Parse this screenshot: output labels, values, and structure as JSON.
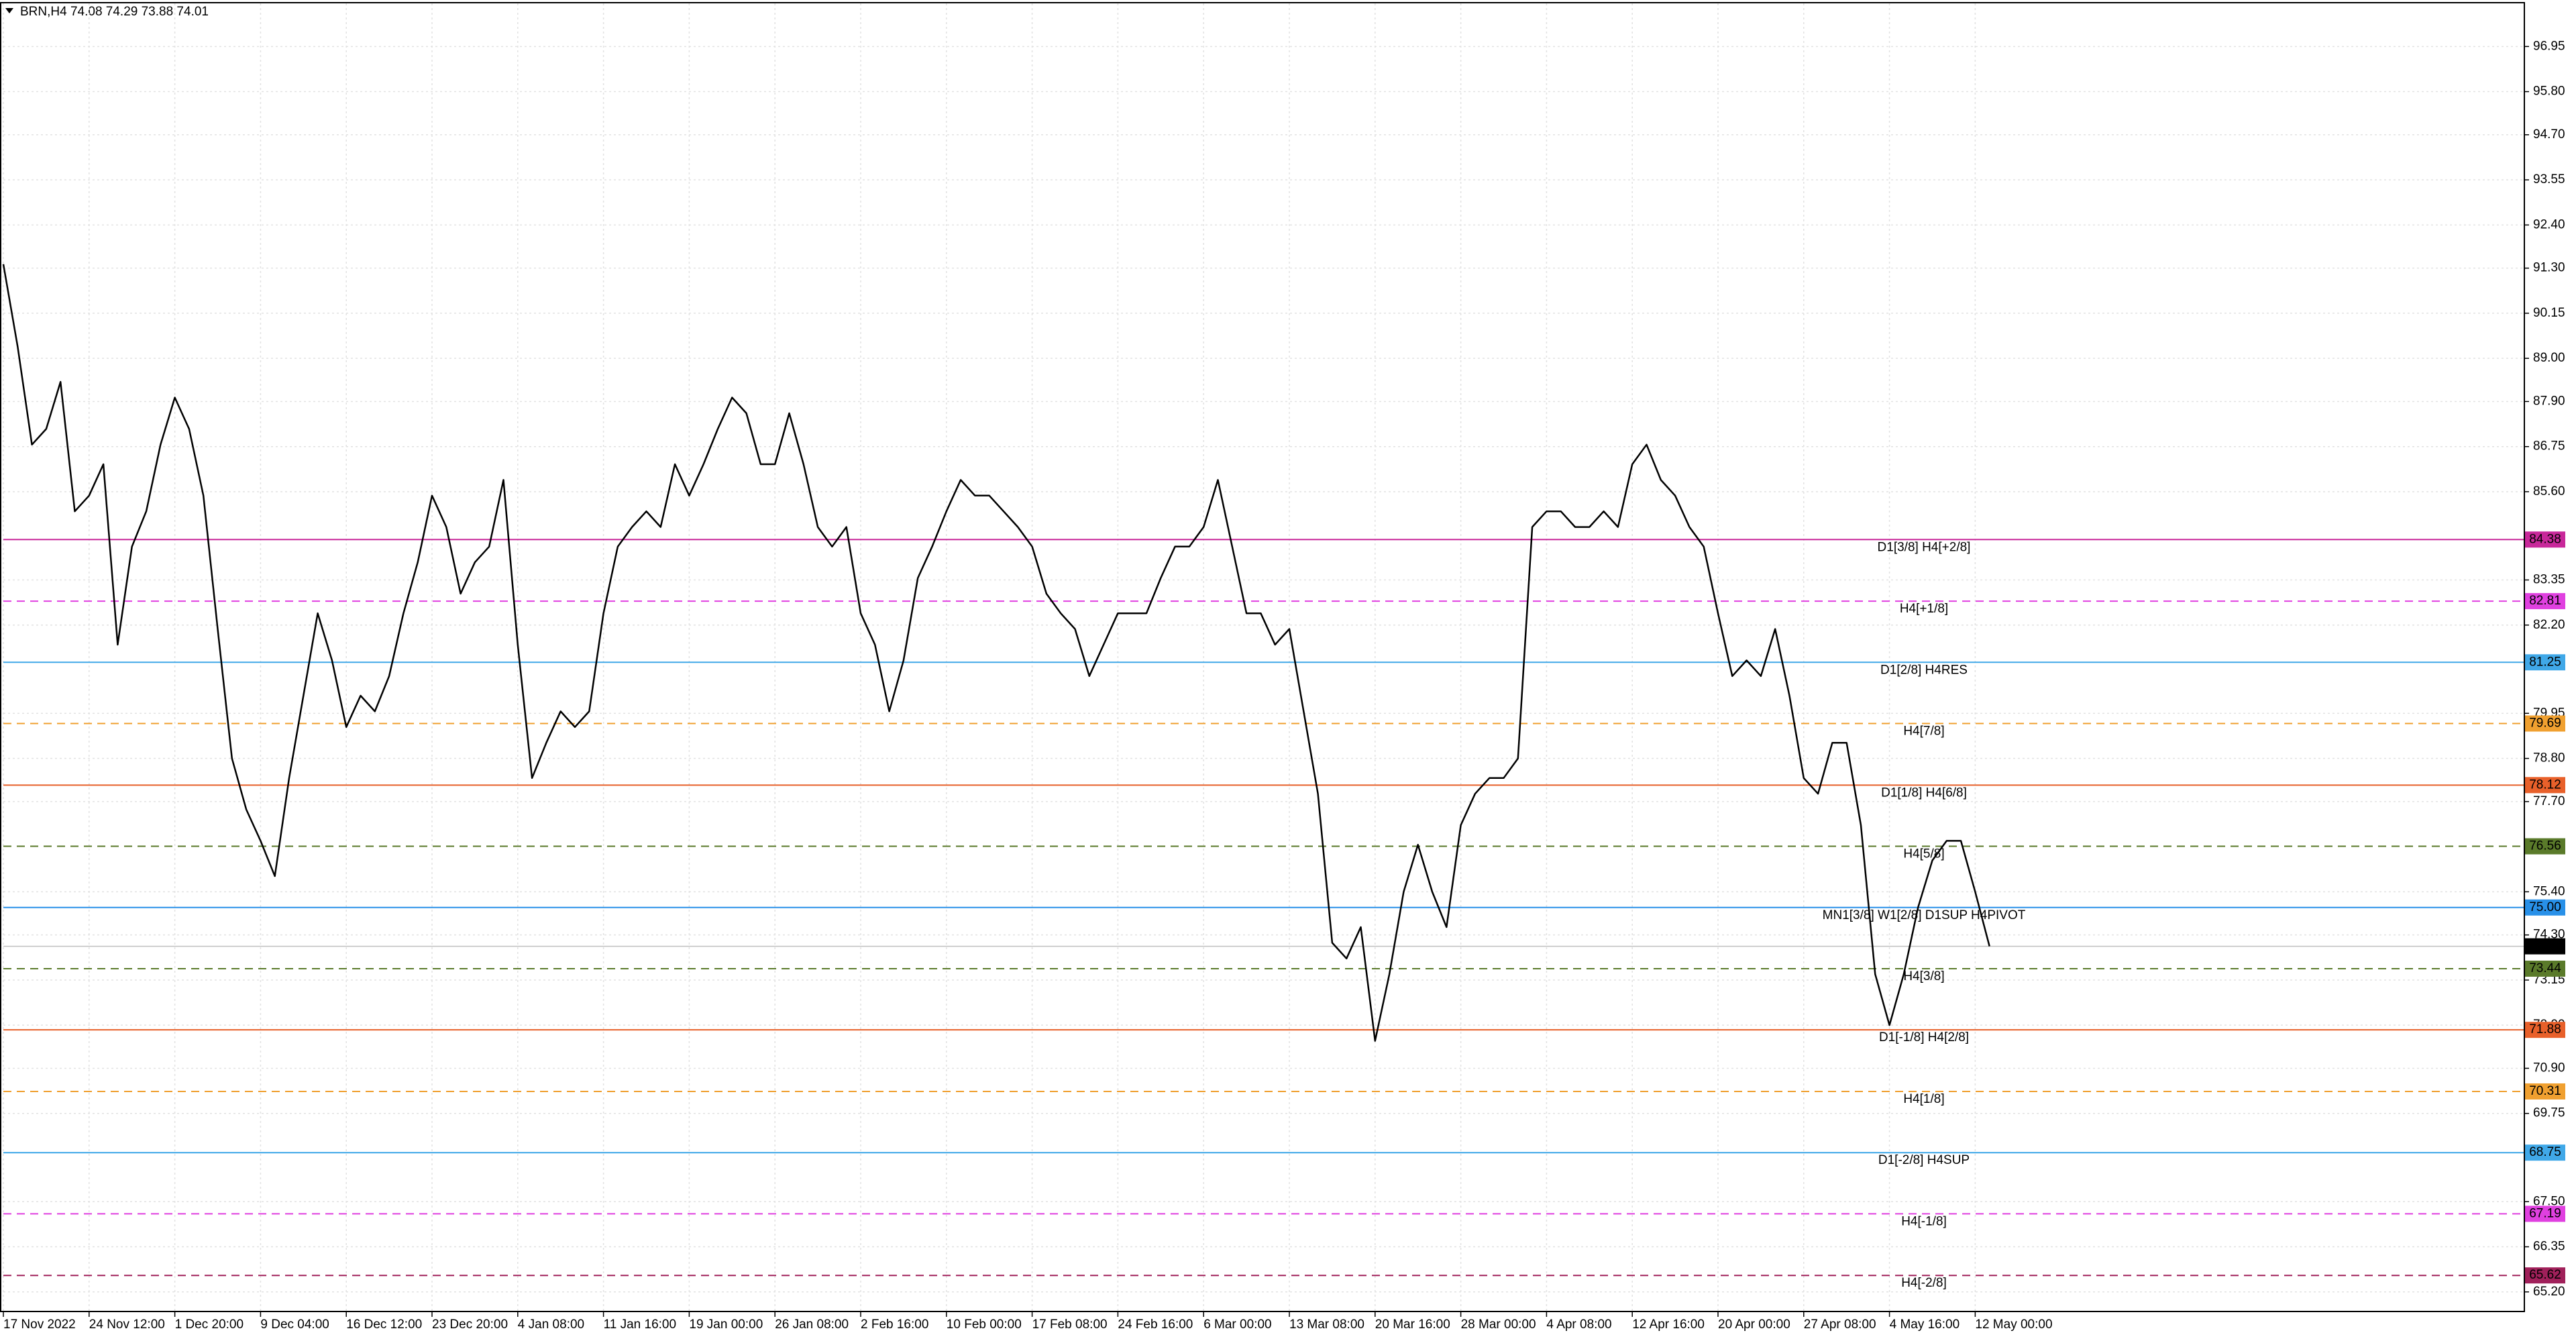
{
  "chart_data": {
    "type": "line",
    "title": "BRN,H4  74.08 74.29 73.88 74.01",
    "categories": [
      "17 Nov 2022",
      null,
      null,
      null,
      null,
      null,
      "24 Nov 12:00",
      null,
      null,
      null,
      null,
      null,
      "1 Dec 20:00",
      null,
      null,
      null,
      null,
      null,
      "9 Dec 04:00",
      null,
      null,
      null,
      null,
      null,
      "16 Dec 12:00",
      null,
      null,
      null,
      null,
      null,
      "23 Dec 20:00",
      null,
      null,
      null,
      null,
      null,
      "4 Jan 08:00",
      null,
      null,
      null,
      null,
      null,
      "11 Jan 16:00",
      null,
      null,
      null,
      null,
      null,
      "19 Jan 00:00",
      null,
      null,
      null,
      null,
      null,
      "26 Jan 08:00",
      null,
      null,
      null,
      null,
      null,
      "2 Feb 16:00",
      null,
      null,
      null,
      null,
      null,
      "10 Feb 00:00",
      null,
      null,
      null,
      null,
      null,
      "17 Feb 08:00",
      null,
      null,
      null,
      null,
      null,
      "24 Feb 16:00",
      null,
      null,
      null,
      null,
      null,
      "6 Mar 00:00",
      null,
      null,
      null,
      null,
      null,
      "13 Mar 08:00",
      null,
      null,
      null,
      null,
      null,
      "20 Mar 16:00",
      null,
      null,
      null,
      null,
      null,
      "28 Mar 00:00",
      null,
      null,
      null,
      null,
      null,
      "4 Apr 08:00",
      null,
      null,
      null,
      null,
      null,
      "12 Apr 16:00",
      null,
      null,
      null,
      null,
      null,
      "20 Apr 00:00",
      null,
      null,
      null,
      null,
      null,
      "27 Apr 08:00",
      null,
      null,
      null,
      null,
      null,
      "4 May 16:00",
      null,
      null,
      null,
      null,
      null,
      "12 May 00:00",
      null
    ],
    "series": [
      {
        "name": "BRN",
        "color": "#000000",
        "values": [
          91.4,
          89.3,
          86.8,
          87.2,
          88.4,
          85.1,
          85.5,
          86.3,
          81.7,
          84.2,
          85.1,
          86.8,
          88.0,
          87.2,
          85.5,
          82.1,
          78.8,
          77.5,
          76.7,
          75.8,
          78.3,
          80.4,
          82.5,
          81.3,
          79.6,
          80.4,
          80.0,
          80.9,
          82.5,
          83.8,
          85.5,
          84.7,
          83.0,
          83.8,
          84.2,
          85.9,
          81.7,
          78.3,
          79.2,
          80.0,
          79.6,
          80.0,
          82.5,
          84.2,
          84.7,
          85.1,
          84.7,
          86.3,
          85.5,
          86.3,
          87.2,
          88.0,
          87.6,
          86.3,
          86.3,
          87.6,
          86.3,
          84.7,
          84.2,
          84.7,
          82.5,
          81.7,
          80.0,
          81.3,
          83.4,
          84.2,
          85.1,
          85.9,
          85.5,
          85.5,
          85.1,
          84.7,
          84.2,
          83.0,
          82.5,
          82.1,
          80.9,
          81.7,
          82.5,
          82.5,
          82.5,
          83.4,
          84.2,
          84.2,
          84.7,
          85.9,
          84.2,
          82.5,
          82.5,
          81.7,
          82.1,
          80.0,
          77.9,
          74.1,
          73.7,
          74.5,
          71.6,
          73.3,
          75.4,
          76.6,
          75.4,
          74.5,
          77.1,
          77.9,
          78.3,
          78.3,
          78.8,
          84.7,
          85.1,
          85.1,
          84.7,
          84.7,
          85.1,
          84.7,
          86.3,
          86.8,
          85.9,
          85.5,
          84.7,
          84.2,
          82.5,
          80.9,
          81.3,
          80.9,
          82.1,
          80.4,
          78.3,
          77.9,
          79.2,
          79.2,
          77.1,
          73.3,
          72.0,
          73.3,
          75.0,
          76.2,
          76.7,
          76.7,
          75.4,
          74.01
        ]
      }
    ],
    "ylim": [
      64.7,
      98.05
    ],
    "yticks": [
      {
        "value": 65.2,
        "label": "65.20"
      },
      66.35,
      {
        "value": 67.5,
        "label": "67.50"
      },
      69.75,
      {
        "value": 70.9,
        "label": "70.90"
      },
      {
        "value": 72,
        "label": "72.00"
      },
      73.15,
      {
        "value": 74.3,
        "label": "74.30"
      },
      {
        "value": 75.4,
        "label": "75.40"
      },
      {
        "value": 77.7,
        "label": "77.70"
      },
      {
        "value": 78.8,
        "label": "78.80"
      },
      79.95,
      {
        "value": 82.2,
        "label": "82.20"
      },
      83.35,
      {
        "value": 85.6,
        "label": "85.60"
      },
      86.75,
      {
        "value": 87.9,
        "label": "87.90"
      },
      {
        "value": 89,
        "label": "89.00"
      },
      90.15,
      {
        "value": 91.3,
        "label": "91.30"
      },
      {
        "value": 92.4,
        "label": "92.40"
      },
      93.55,
      {
        "value": 94.7,
        "label": "94.70"
      },
      {
        "value": 95.8,
        "label": "95.80"
      },
      96.95
    ],
    "grid": true,
    "levels": [
      {
        "name": "D1[3/8] H4[+2/8]",
        "value": 84.38,
        "color": "#c8289a",
        "dashed": false
      },
      {
        "name": "H4[+1/8]",
        "value": 82.81,
        "color": "#e040e0",
        "dashed": true
      },
      {
        "name": "D1[2/8] H4RES",
        "value": 81.25,
        "color": "#40a8e8",
        "dashed": false
      },
      {
        "name": "H4[7/8]",
        "value": 79.69,
        "color": "#f0a030",
        "dashed": true
      },
      {
        "name": "D1[1/8] H4[6/8]",
        "value": 78.12,
        "color": "#e8602a",
        "dashed": false
      },
      {
        "name": "H4[5/8]",
        "value": 76.56,
        "color": "#5a7a2a",
        "dashed": true
      },
      {
        "name": "MN1[3/8] W1[2/8] D1SUP H4PIVOT",
        "value": 75,
        "value_label": "75.00",
        "color": "#2890e8",
        "dashed": false
      },
      {
        "name": "H4[3/8]",
        "value": 73.44,
        "color": "#5a7a2a",
        "dashed": true
      },
      {
        "name": "D1[-1/8] H4[2/8]",
        "value": 71.88,
        "color": "#e8602a",
        "dashed": false
      },
      {
        "name": "H4[1/8]",
        "value": 70.31,
        "color": "#f0a030",
        "dashed": true
      },
      {
        "name": "D1[-2/8] H4SUP",
        "value": 68.75,
        "color": "#40a8e8",
        "dashed": false
      },
      {
        "name": "H4[-1/8]",
        "value": 67.19,
        "color": "#e040e0",
        "dashed": true
      },
      {
        "name": "H4[-2/8]",
        "value": 65.62,
        "color": "#a0205a",
        "dashed": true
      }
    ],
    "last_price": {
      "value": 74.01,
      "color": "#000000"
    }
  }
}
